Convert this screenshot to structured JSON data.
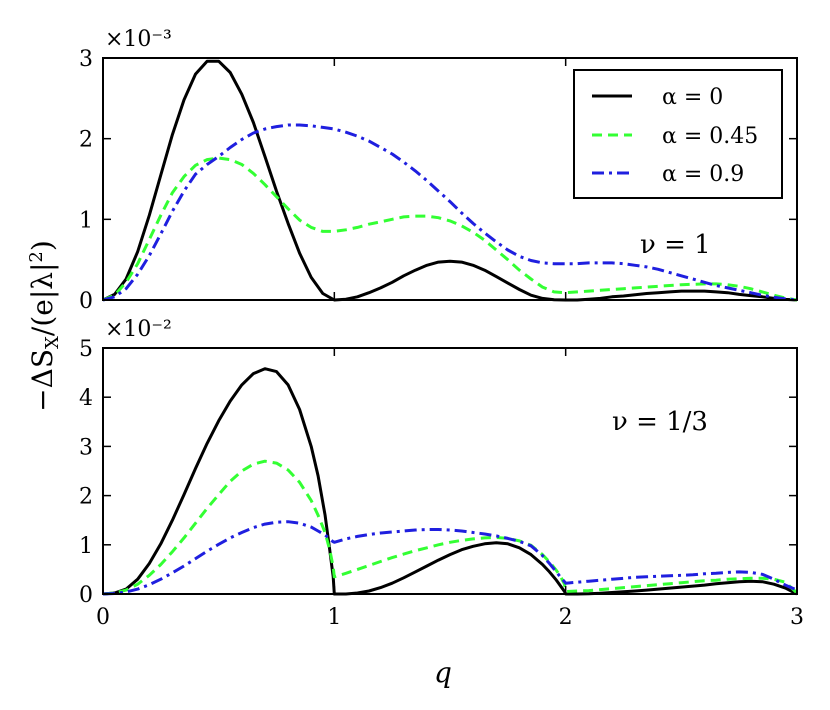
{
  "chart_data": [
    {
      "type": "line",
      "panel": "top",
      "xlabel": "",
      "xlim": [
        0,
        3
      ],
      "ylim": [
        0,
        3
      ],
      "y_multiplier": "×10⁻³",
      "y_ticks": [
        "0",
        "1",
        "2",
        "3"
      ],
      "x_ticks": [],
      "annotation": "ν = 1",
      "legend": {
        "position": "top-right",
        "entries": [
          "α = 0",
          "α = 0.45",
          "α = 0.9"
        ]
      },
      "series": [
        {
          "name": "α = 0",
          "color": "#000000",
          "style": "solid",
          "x": [
            0,
            0.05,
            0.1,
            0.15,
            0.2,
            0.25,
            0.3,
            0.35,
            0.4,
            0.45,
            0.5,
            0.55,
            0.6,
            0.65,
            0.7,
            0.75,
            0.8,
            0.85,
            0.9,
            0.95,
            1.0,
            1.05,
            1.1,
            1.15,
            1.2,
            1.25,
            1.3,
            1.35,
            1.4,
            1.45,
            1.5,
            1.55,
            1.6,
            1.65,
            1.7,
            1.75,
            1.8,
            1.85,
            1.9,
            1.95,
            2.0,
            2.05,
            2.1,
            2.15,
            2.2,
            2.25,
            2.3,
            2.35,
            2.4,
            2.45,
            2.5,
            2.55,
            2.6,
            2.65,
            2.7,
            2.75,
            2.8,
            2.85,
            2.9,
            2.95,
            3.0
          ],
          "y": [
            0,
            0.07,
            0.26,
            0.6,
            1.05,
            1.55,
            2.05,
            2.48,
            2.8,
            2.96,
            2.96,
            2.82,
            2.55,
            2.2,
            1.78,
            1.35,
            0.95,
            0.58,
            0.28,
            0.08,
            0.0,
            0.01,
            0.04,
            0.09,
            0.15,
            0.22,
            0.3,
            0.37,
            0.43,
            0.47,
            0.48,
            0.47,
            0.43,
            0.37,
            0.29,
            0.21,
            0.13,
            0.06,
            0.02,
            0.003,
            0.0,
            0.0,
            0.01,
            0.02,
            0.04,
            0.05,
            0.065,
            0.08,
            0.09,
            0.1,
            0.11,
            0.11,
            0.11,
            0.1,
            0.09,
            0.07,
            0.055,
            0.04,
            0.02,
            0.008,
            0.0
          ]
        },
        {
          "name": "α = 0.45",
          "color": "#33ff33",
          "style": "dashed",
          "x": [
            0,
            0.05,
            0.1,
            0.15,
            0.2,
            0.25,
            0.3,
            0.35,
            0.4,
            0.45,
            0.5,
            0.55,
            0.6,
            0.65,
            0.7,
            0.75,
            0.8,
            0.85,
            0.9,
            0.95,
            1.0,
            1.05,
            1.1,
            1.15,
            1.2,
            1.25,
            1.3,
            1.35,
            1.4,
            1.45,
            1.5,
            1.55,
            1.6,
            1.65,
            1.7,
            1.75,
            1.8,
            1.85,
            1.9,
            1.95,
            2.0,
            2.05,
            2.1,
            2.15,
            2.2,
            2.25,
            2.3,
            2.35,
            2.4,
            2.45,
            2.5,
            2.55,
            2.6,
            2.65,
            2.7,
            2.75,
            2.8,
            2.85,
            2.9,
            2.95,
            3.0
          ],
          "y": [
            0,
            0.06,
            0.22,
            0.45,
            0.75,
            1.05,
            1.33,
            1.53,
            1.67,
            1.74,
            1.76,
            1.74,
            1.68,
            1.57,
            1.43,
            1.28,
            1.13,
            0.99,
            0.9,
            0.85,
            0.85,
            0.87,
            0.9,
            0.94,
            0.97,
            1.0,
            1.03,
            1.04,
            1.04,
            1.02,
            0.98,
            0.92,
            0.84,
            0.74,
            0.62,
            0.5,
            0.37,
            0.26,
            0.16,
            0.1,
            0.09,
            0.1,
            0.11,
            0.12,
            0.13,
            0.14,
            0.15,
            0.16,
            0.17,
            0.18,
            0.19,
            0.195,
            0.2,
            0.2,
            0.19,
            0.17,
            0.14,
            0.1,
            0.06,
            0.025,
            0.0
          ]
        },
        {
          "name": "α = 0.9",
          "color": "#1f1fdf",
          "style": "dashdot",
          "x": [
            0,
            0.05,
            0.1,
            0.15,
            0.2,
            0.25,
            0.3,
            0.35,
            0.4,
            0.45,
            0.5,
            0.55,
            0.6,
            0.65,
            0.7,
            0.75,
            0.8,
            0.85,
            0.9,
            0.95,
            1.0,
            1.05,
            1.1,
            1.15,
            1.2,
            1.25,
            1.3,
            1.35,
            1.4,
            1.45,
            1.5,
            1.55,
            1.6,
            1.65,
            1.7,
            1.75,
            1.8,
            1.85,
            1.9,
            1.95,
            2.0,
            2.05,
            2.1,
            2.15,
            2.2,
            2.25,
            2.3,
            2.35,
            2.4,
            2.45,
            2.5,
            2.55,
            2.6,
            2.65,
            2.7,
            2.75,
            2.8,
            2.85,
            2.9,
            2.95,
            3.0
          ],
          "y": [
            0,
            0.04,
            0.14,
            0.32,
            0.55,
            0.82,
            1.1,
            1.35,
            1.56,
            1.68,
            1.78,
            1.89,
            1.99,
            2.07,
            2.12,
            2.15,
            2.17,
            2.17,
            2.16,
            2.14,
            2.12,
            2.08,
            2.03,
            1.97,
            1.89,
            1.81,
            1.71,
            1.6,
            1.48,
            1.35,
            1.22,
            1.08,
            0.95,
            0.83,
            0.72,
            0.62,
            0.54,
            0.49,
            0.46,
            0.45,
            0.45,
            0.45,
            0.46,
            0.46,
            0.46,
            0.45,
            0.43,
            0.41,
            0.38,
            0.34,
            0.3,
            0.26,
            0.22,
            0.18,
            0.15,
            0.12,
            0.09,
            0.06,
            0.035,
            0.015,
            0.0
          ]
        }
      ]
    },
    {
      "type": "line",
      "panel": "bottom",
      "xlabel": "q",
      "xlim": [
        0,
        3
      ],
      "ylim": [
        0,
        5
      ],
      "y_multiplier": "×10⁻²",
      "y_ticks": [
        "0",
        "1",
        "2",
        "3",
        "4",
        "5"
      ],
      "x_ticks": [
        "0",
        "1",
        "2",
        "3"
      ],
      "annotation": "ν = 1/3",
      "series": [
        {
          "name": "α = 0",
          "color": "#000000",
          "style": "solid",
          "x": [
            0,
            0.05,
            0.1,
            0.15,
            0.2,
            0.25,
            0.3,
            0.35,
            0.4,
            0.45,
            0.5,
            0.55,
            0.6,
            0.65,
            0.7,
            0.75,
            0.8,
            0.85,
            0.9,
            0.93,
            0.96,
            0.98,
            0.995,
            1.0,
            1.05,
            1.1,
            1.15,
            1.2,
            1.25,
            1.3,
            1.35,
            1.4,
            1.45,
            1.5,
            1.55,
            1.6,
            1.65,
            1.7,
            1.75,
            1.8,
            1.85,
            1.9,
            1.93,
            1.96,
            1.98,
            1.995,
            2.0,
            2.05,
            2.1,
            2.15,
            2.2,
            2.25,
            2.3,
            2.35,
            2.4,
            2.45,
            2.5,
            2.55,
            2.6,
            2.65,
            2.7,
            2.75,
            2.8,
            2.85,
            2.9,
            2.95,
            3.0
          ],
          "y": [
            0,
            0.02,
            0.1,
            0.3,
            0.62,
            1.02,
            1.5,
            2.02,
            2.55,
            3.06,
            3.52,
            3.92,
            4.25,
            4.48,
            4.58,
            4.52,
            4.25,
            3.75,
            3.0,
            2.4,
            1.6,
            0.9,
            0.35,
            0.0,
            0.0,
            0.02,
            0.06,
            0.13,
            0.22,
            0.33,
            0.45,
            0.57,
            0.69,
            0.8,
            0.9,
            0.97,
            1.02,
            1.04,
            1.02,
            0.94,
            0.8,
            0.6,
            0.45,
            0.28,
            0.15,
            0.05,
            0.0,
            0.0,
            0.005,
            0.015,
            0.03,
            0.045,
            0.06,
            0.08,
            0.1,
            0.12,
            0.14,
            0.16,
            0.18,
            0.21,
            0.23,
            0.25,
            0.26,
            0.25,
            0.2,
            0.12,
            0.0
          ]
        },
        {
          "name": "α = 0.45",
          "color": "#33ff33",
          "style": "dashed",
          "x": [
            0,
            0.05,
            0.1,
            0.15,
            0.2,
            0.25,
            0.3,
            0.35,
            0.4,
            0.45,
            0.5,
            0.55,
            0.6,
            0.65,
            0.7,
            0.75,
            0.8,
            0.85,
            0.9,
            0.93,
            0.96,
            0.98,
            0.995,
            1.0,
            1.05,
            1.1,
            1.15,
            1.2,
            1.25,
            1.3,
            1.35,
            1.4,
            1.45,
            1.5,
            1.55,
            1.6,
            1.65,
            1.7,
            1.75,
            1.8,
            1.85,
            1.9,
            1.93,
            1.96,
            1.98,
            1.995,
            2.0,
            2.05,
            2.1,
            2.15,
            2.2,
            2.25,
            2.3,
            2.35,
            2.4,
            2.45,
            2.5,
            2.55,
            2.6,
            2.65,
            2.7,
            2.75,
            2.8,
            2.85,
            2.9,
            2.95,
            3.0
          ],
          "y": [
            0,
            0.02,
            0.08,
            0.2,
            0.38,
            0.6,
            0.86,
            1.14,
            1.44,
            1.74,
            2.02,
            2.29,
            2.5,
            2.64,
            2.7,
            2.66,
            2.52,
            2.27,
            1.9,
            1.6,
            1.25,
            0.9,
            0.55,
            0.35,
            0.42,
            0.5,
            0.58,
            0.66,
            0.74,
            0.81,
            0.88,
            0.94,
            1.0,
            1.05,
            1.09,
            1.12,
            1.14,
            1.15,
            1.13,
            1.08,
            0.99,
            0.8,
            0.65,
            0.48,
            0.34,
            0.2,
            0.05,
            0.06,
            0.07,
            0.09,
            0.11,
            0.13,
            0.15,
            0.17,
            0.19,
            0.21,
            0.23,
            0.25,
            0.27,
            0.28,
            0.3,
            0.31,
            0.32,
            0.32,
            0.3,
            0.24,
            0.02
          ]
        },
        {
          "name": "α = 0.9",
          "color": "#1f1fdf",
          "style": "dashdot",
          "x": [
            0,
            0.05,
            0.1,
            0.15,
            0.2,
            0.25,
            0.3,
            0.35,
            0.4,
            0.45,
            0.5,
            0.55,
            0.6,
            0.65,
            0.7,
            0.75,
            0.8,
            0.85,
            0.9,
            0.93,
            0.96,
            0.98,
            0.995,
            1.0,
            1.05,
            1.1,
            1.15,
            1.2,
            1.25,
            1.3,
            1.35,
            1.4,
            1.45,
            1.5,
            1.55,
            1.6,
            1.65,
            1.7,
            1.75,
            1.8,
            1.85,
            1.9,
            1.93,
            1.96,
            1.98,
            1.995,
            2.0,
            2.05,
            2.1,
            2.15,
            2.2,
            2.25,
            2.3,
            2.35,
            2.4,
            2.45,
            2.5,
            2.55,
            2.6,
            2.65,
            2.7,
            2.75,
            2.8,
            2.85,
            2.9,
            2.95,
            3.0
          ],
          "y": [
            0,
            0.01,
            0.04,
            0.1,
            0.19,
            0.3,
            0.43,
            0.57,
            0.72,
            0.87,
            1.01,
            1.14,
            1.25,
            1.35,
            1.42,
            1.46,
            1.47,
            1.44,
            1.36,
            1.28,
            1.2,
            1.12,
            1.06,
            1.05,
            1.12,
            1.17,
            1.21,
            1.24,
            1.26,
            1.28,
            1.3,
            1.31,
            1.31,
            1.3,
            1.28,
            1.25,
            1.22,
            1.18,
            1.13,
            1.07,
            0.98,
            0.78,
            0.62,
            0.45,
            0.33,
            0.25,
            0.22,
            0.24,
            0.26,
            0.28,
            0.3,
            0.32,
            0.34,
            0.35,
            0.36,
            0.37,
            0.38,
            0.39,
            0.41,
            0.42,
            0.44,
            0.45,
            0.44,
            0.4,
            0.3,
            0.18,
            0.08
          ]
        }
      ]
    }
  ]
}
